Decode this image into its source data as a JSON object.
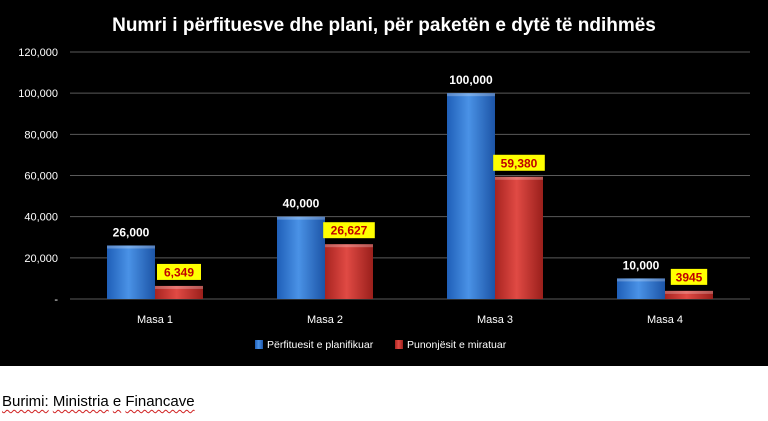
{
  "chart_data": {
    "type": "bar",
    "title": "Numri i përfituesve dhe plani, për paketën e dytë të ndihmës",
    "categories": [
      "Masa 1",
      "Masa 2",
      "Masa 3",
      "Masa 4"
    ],
    "series": [
      {
        "name": "Përfituesit e planifikuar",
        "values": [
          26000,
          40000,
          100000,
          10000
        ],
        "labels": [
          "26,000",
          "40,000",
          "100,000",
          "10,000"
        ],
        "color": "#3b7fd4",
        "label_style": "plain"
      },
      {
        "name": "Punonjësit e miratuar",
        "values": [
          6349,
          26627,
          59380,
          3945
        ],
        "labels": [
          "6,349",
          "26,627",
          "59,380",
          "3945"
        ],
        "color": "#d23b36",
        "label_style": "highlight"
      }
    ],
    "y_ticks": [
      "-",
      "20,000",
      "40,000",
      "60,000",
      "80,000",
      "100,000",
      "120,000"
    ],
    "ylim": [
      0,
      120000
    ],
    "grid": true,
    "legend_position": "bottom",
    "background": "#000000",
    "highlight_color": "#ffff00"
  },
  "source": {
    "prefix": "Burimi:",
    "org_word1": "Ministria",
    "org_word2": "e",
    "org_word3": "Financave"
  }
}
